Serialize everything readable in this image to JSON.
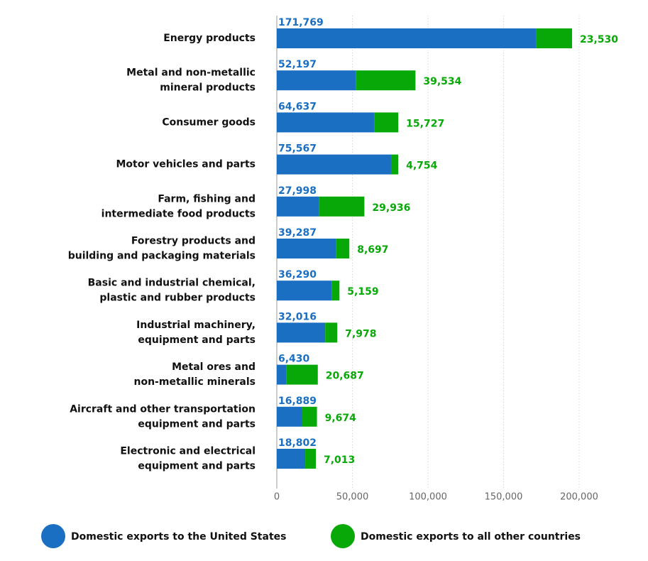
{
  "chart_data": {
    "type": "stacked-barh",
    "categories": [
      [
        "Energy products"
      ],
      [
        "Metal and non-metallic",
        "mineral products"
      ],
      [
        "Consumer goods"
      ],
      [
        "Motor vehicles and parts"
      ],
      [
        "Farm, fishing and",
        "intermediate food products"
      ],
      [
        "Forestry products and",
        "building and packaging materials"
      ],
      [
        "Basic and industrial chemical,",
        "plastic and rubber products"
      ],
      [
        "Industrial machinery,",
        "equipment and parts"
      ],
      [
        "Metal ores and",
        "non-metallic minerals"
      ],
      [
        "Aircraft and other transportation",
        "equipment and parts"
      ],
      [
        "Electronic and electrical",
        "equipment and parts"
      ]
    ],
    "series": [
      {
        "name": "Domestic exports to the United States",
        "color": "#1a6fc2",
        "values": [
          171769,
          52197,
          64637,
          75567,
          27998,
          39287,
          36290,
          32016,
          6430,
          16889,
          18802
        ],
        "value_labels": [
          "171,769",
          "52,197",
          "64,637",
          "75,567",
          "27,998",
          "39,287",
          "36,290",
          "32,016",
          "6,430",
          "16,889",
          "18,802"
        ]
      },
      {
        "name": "Domestic exports to all other countries",
        "color": "#08a808",
        "values": [
          23530,
          39534,
          15727,
          4754,
          29936,
          8697,
          5159,
          7978,
          20687,
          9674,
          7013
        ],
        "value_labels": [
          "23,530",
          "39,534",
          "15,727",
          "4,754",
          "29,936",
          "8,697",
          "5,159",
          "7,978",
          "20,687",
          "9,674",
          "7,013"
        ]
      }
    ],
    "xlim": [
      0,
      200000
    ],
    "xticks": [
      0,
      {
        "value": 50000,
        "label": "50,000"
      },
      {
        "value": 100000,
        "label": "100,000"
      },
      {
        "value": 150000,
        "label": "150,000"
      },
      {
        "value": 200000,
        "label": "200,000"
      }
    ],
    "grid": true
  }
}
